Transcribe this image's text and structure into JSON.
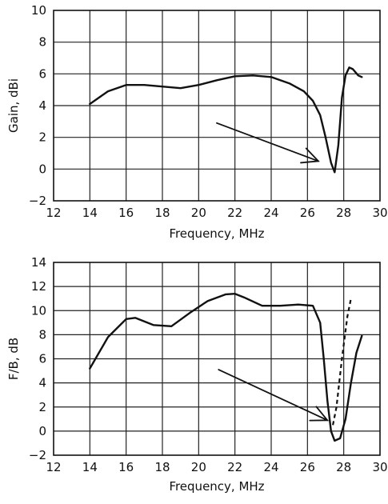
{
  "chart_data": [
    {
      "type": "line",
      "title": "",
      "xlabel": "Frequency, MHz",
      "ylabel": "Gain, dBi",
      "xlim": [
        12,
        30
      ],
      "ylim": [
        -2,
        10
      ],
      "x_ticks": [
        "12",
        "14",
        "16",
        "18",
        "20",
        "22",
        "24",
        "26",
        "28",
        "30"
      ],
      "y_ticks": [
        "10",
        "8",
        "6",
        "4",
        "2",
        "0",
        "−2"
      ],
      "grid": true,
      "series": [
        {
          "line_style": "solid",
          "x": [
            14,
            15,
            16,
            17,
            18,
            19,
            20,
            21,
            22,
            23,
            24,
            25,
            25.8,
            26.3,
            26.7,
            27.0,
            27.3,
            27.5,
            27.7,
            27.9,
            28.1,
            28.3,
            28.5,
            28.8,
            29.0
          ],
          "y": [
            4.1,
            4.9,
            5.3,
            5.3,
            5.2,
            5.1,
            5.3,
            5.6,
            5.85,
            5.9,
            5.8,
            5.4,
            4.9,
            4.3,
            3.4,
            2.0,
            0.4,
            -0.2,
            1.5,
            4.5,
            5.9,
            6.4,
            6.3,
            5.9,
            5.8
          ]
        }
      ],
      "annotations": [
        {
          "type": "arrow",
          "from": [
            21,
            2.9
          ],
          "to": [
            26.6,
            0.5
          ]
        }
      ]
    },
    {
      "type": "line",
      "title": "",
      "xlabel": "Frequency, MHz",
      "ylabel": "F/B, dB",
      "xlim": [
        12,
        30
      ],
      "ylim": [
        -2,
        14
      ],
      "x_ticks": [
        "12",
        "14",
        "16",
        "18",
        "20",
        "22",
        "24",
        "26",
        "28",
        "30"
      ],
      "y_ticks": [
        "14",
        "12",
        "10",
        "8",
        "6",
        "4",
        "2",
        "0",
        "−2"
      ],
      "grid": true,
      "series": [
        {
          "line_style": "solid",
          "x": [
            14,
            15,
            16,
            16.5,
            17.5,
            18.5,
            19.5,
            20.5,
            21.5,
            22,
            22.5,
            23.5,
            24.5,
            25.5,
            26.3,
            26.7,
            26.9,
            27.1,
            27.3,
            27.5,
            27.8,
            28.1,
            28.4,
            28.7,
            29.0
          ],
          "y": [
            5.2,
            7.8,
            9.3,
            9.4,
            8.8,
            8.7,
            9.8,
            10.8,
            11.35,
            11.4,
            11.1,
            10.4,
            10.4,
            10.5,
            10.4,
            9.0,
            6.0,
            2.5,
            0.0,
            -0.8,
            -0.6,
            1.0,
            4.0,
            6.5,
            7.9
          ]
        },
        {
          "line_style": "dashed",
          "x": [
            27.4,
            27.6,
            27.9,
            28.2,
            28.4
          ],
          "y": [
            0.5,
            2.0,
            6.0,
            9.5,
            11.0
          ]
        }
      ],
      "annotations": [
        {
          "type": "arrow",
          "from": [
            21.1,
            5.1
          ],
          "to": [
            27.1,
            0.9
          ]
        }
      ]
    }
  ]
}
